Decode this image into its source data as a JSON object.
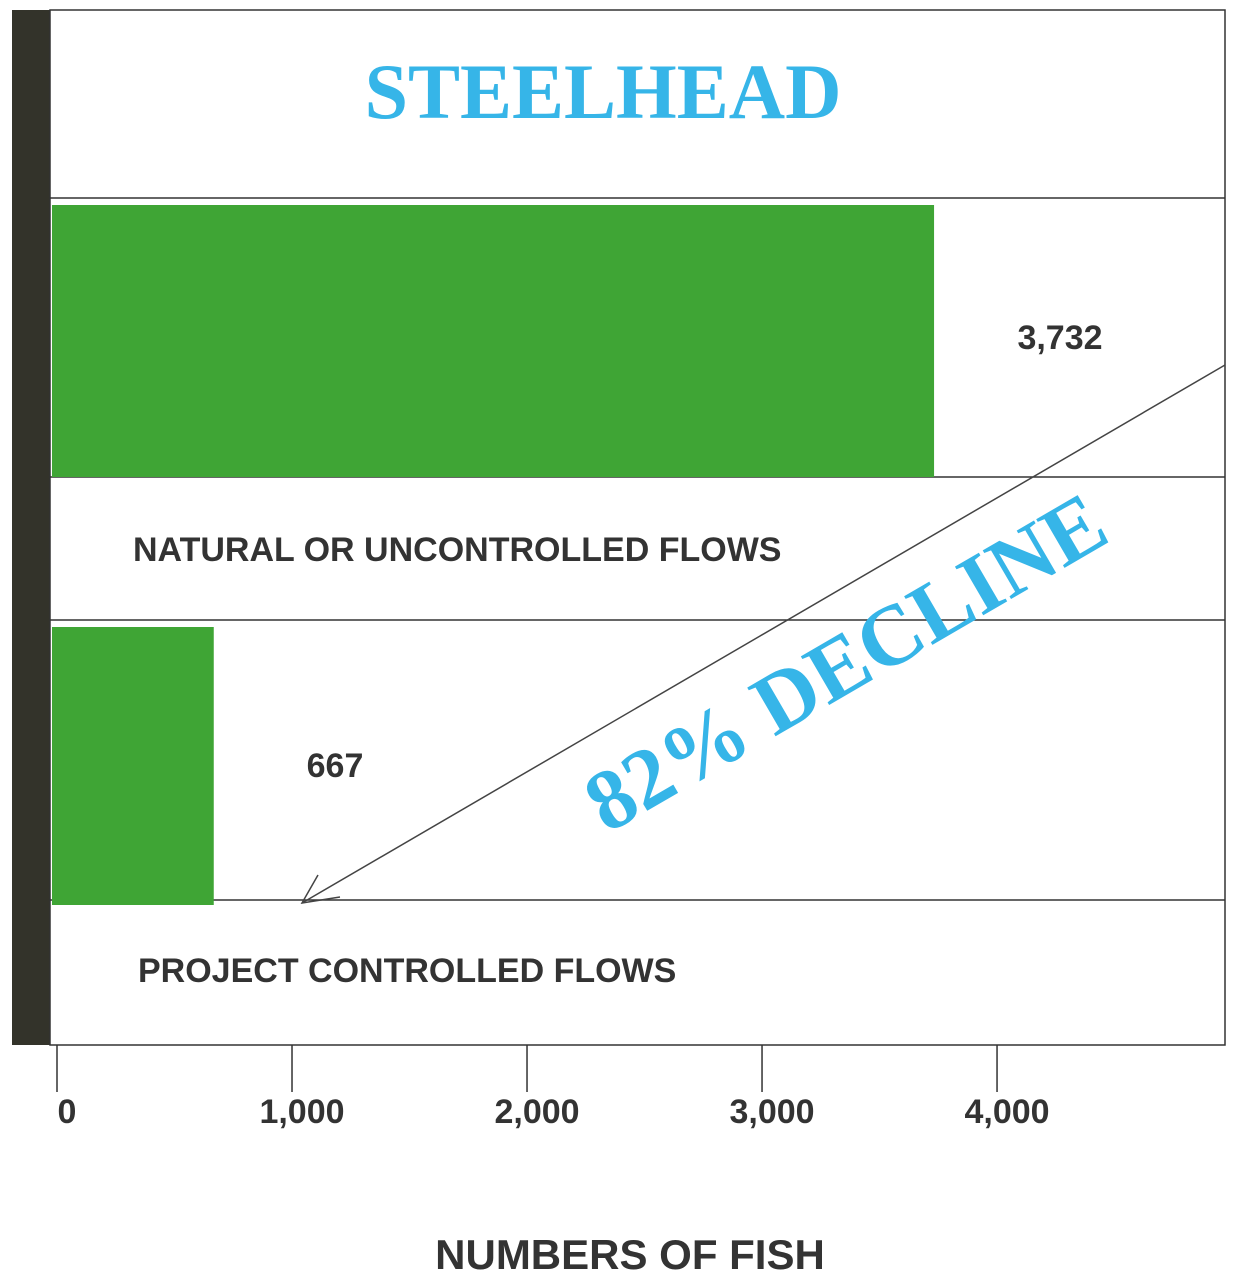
{
  "chart_data": {
    "type": "barh",
    "title": "STEELHEAD",
    "categories": [
      "NATURAL OR UNCONTROLLED FLOWS",
      "PROJECT CONTROLLED FLOWS"
    ],
    "values": [
      3732,
      667
    ],
    "value_labels": [
      "3,732",
      "667"
    ],
    "color": "#3fa535",
    "xlabel": "NUMBERS OF FISH",
    "xlim": [
      0,
      4970
    ],
    "xticks": [
      0,
      {
        "value": 1000,
        "label": "1,000"
      },
      {
        "value": 2000,
        "label": "2,000"
      },
      {
        "value": 3000,
        "label": "3,000"
      },
      {
        "value": 4000,
        "label": "4,000"
      }
    ],
    "annotation": "82% DECLINE"
  }
}
